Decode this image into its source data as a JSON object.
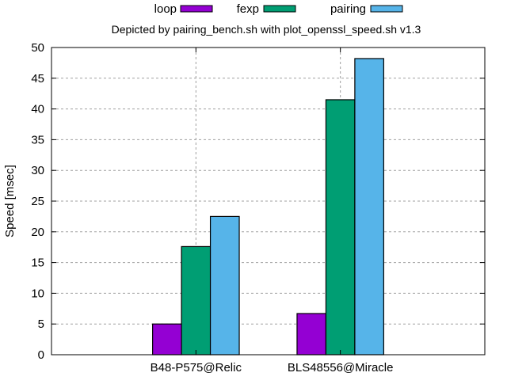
{
  "chart_data": {
    "type": "bar",
    "title": "Depicted by pairing_bench.sh with plot_openssl_speed.sh v1.3",
    "xlabel": "",
    "ylabel": "Speed [msec]",
    "ylim": [
      0,
      50
    ],
    "yticks": [
      0,
      5,
      10,
      15,
      20,
      25,
      30,
      35,
      40,
      45,
      50
    ],
    "grid": true,
    "legend_placement": "top",
    "categories": [
      "B48-P575@Relic",
      "BLS48556@Miracle"
    ],
    "series": [
      {
        "name": "loop",
        "color": "#9400d3",
        "values": [
          5.0,
          6.7
        ]
      },
      {
        "name": "fexp",
        "color": "#009e73",
        "values": [
          17.6,
          41.5
        ]
      },
      {
        "name": "pairing",
        "color": "#56b4e9",
        "values": [
          22.5,
          48.2
        ]
      }
    ]
  }
}
